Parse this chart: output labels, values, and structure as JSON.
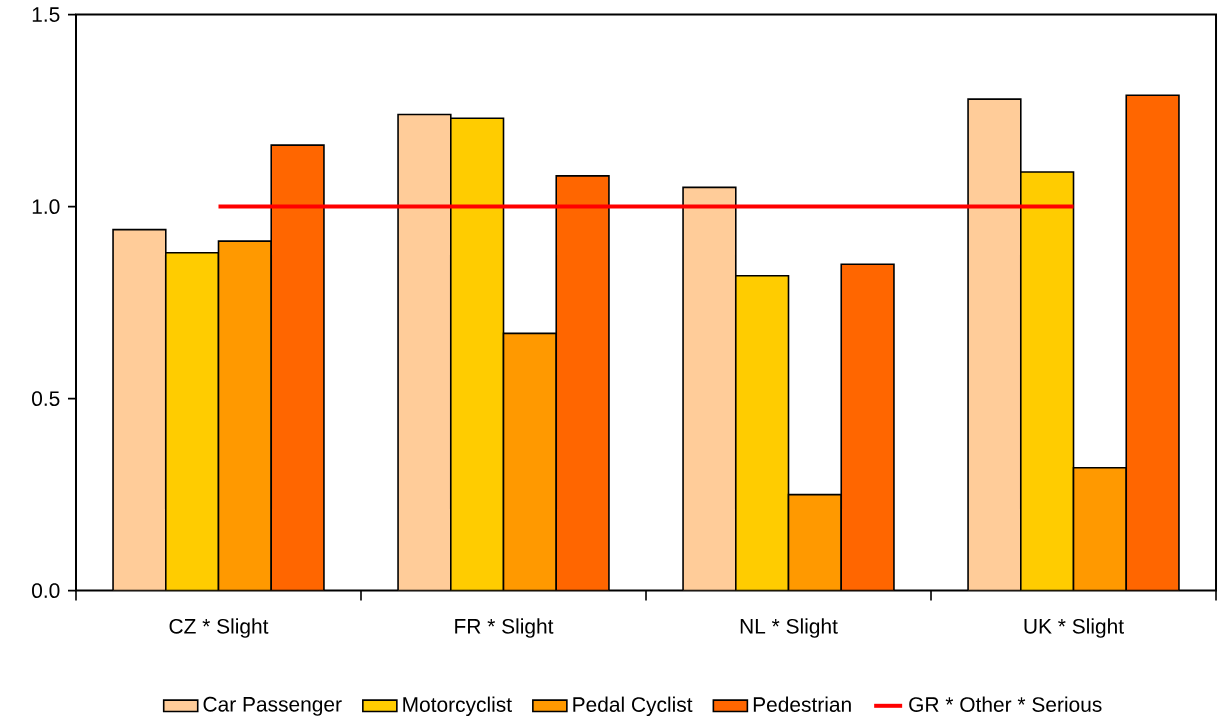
{
  "chart_data": {
    "type": "bar",
    "categories": [
      "CZ * Slight",
      "FR * Slight",
      "NL * Slight",
      "UK * Slight"
    ],
    "series": [
      {
        "name": "Car Passenger",
        "color": "#ffcc99",
        "values": [
          0.94,
          1.24,
          1.05,
          1.28
        ]
      },
      {
        "name": "Motorcyclist",
        "color": "#ffcc00",
        "values": [
          0.88,
          1.23,
          0.82,
          1.09
        ]
      },
      {
        "name": "Pedal Cyclist",
        "color": "#ff9900",
        "values": [
          0.91,
          0.67,
          0.25,
          0.32
        ]
      },
      {
        "name": "Pedestrian",
        "color": "#ff6600",
        "values": [
          1.16,
          1.08,
          0.85,
          1.29
        ]
      },
      {
        "name": "GR * Other * Serious",
        "type": "line",
        "color": "#ff0000",
        "values": [
          1.0,
          1.0,
          1.0,
          1.0
        ]
      }
    ],
    "ylim": [
      0,
      1.5
    ],
    "yticks": [
      {
        "value": 0,
        "label": "0.0"
      },
      {
        "value": 0.5,
        "label": "0.5"
      },
      {
        "value": 1.0,
        "label": "1.0"
      },
      {
        "value": 1.5,
        "label": "1.5"
      }
    ],
    "grid": false,
    "legend": "bottom",
    "marker": "none"
  }
}
